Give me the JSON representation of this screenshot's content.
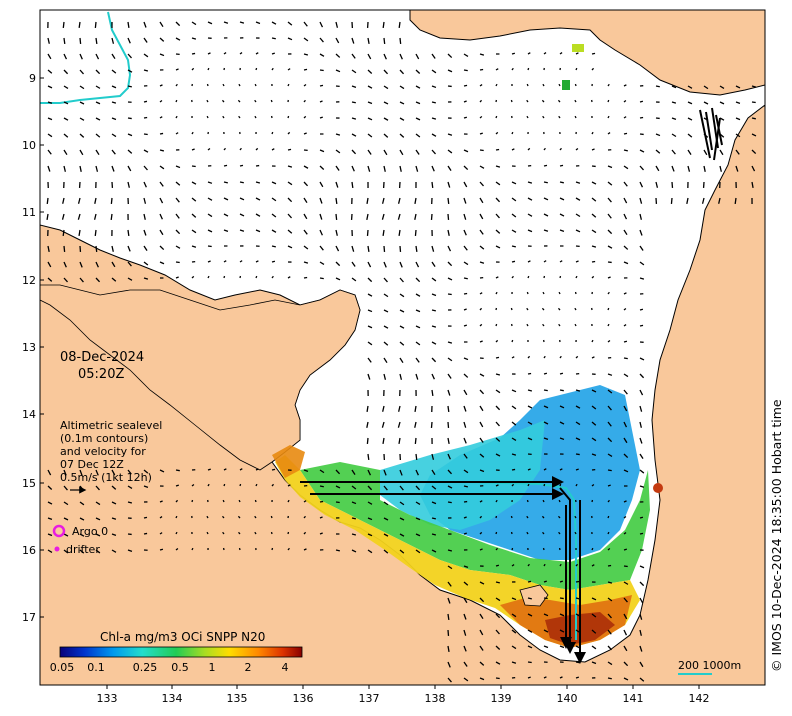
{
  "map": {
    "date": "08-Dec-2024",
    "time": "05:20Z",
    "credit": "© IMOS 10-Dec-2024 18:35:00 Hobart time",
    "legend_lines": [
      "Altimetric sealevel",
      "(0.1m contours)",
      "and velocity for",
      "07 Dec 12Z",
      "0.5m/s (1kt 12h)"
    ],
    "argo_label": "Argo 0",
    "drifter_label": "drifter",
    "colorbar_title": "Chl-a mg/m3 OCi SNPP N20",
    "colorbar_ticks": [
      "0.05",
      "0.1",
      "0.25",
      "0.5",
      "1",
      "2",
      "4"
    ],
    "scale_label": "200  1000m",
    "lat_ticks": [
      "9",
      "10",
      "11",
      "12",
      "13",
      "14",
      "15",
      "16",
      "17"
    ],
    "lon_ticks": [
      "133",
      "134",
      "135",
      "136",
      "137",
      "138",
      "139",
      "140",
      "141",
      "142"
    ],
    "colors": {
      "land": "#f9c89b",
      "argo": "#e81ce0",
      "contour": "#22cccc"
    }
  }
}
